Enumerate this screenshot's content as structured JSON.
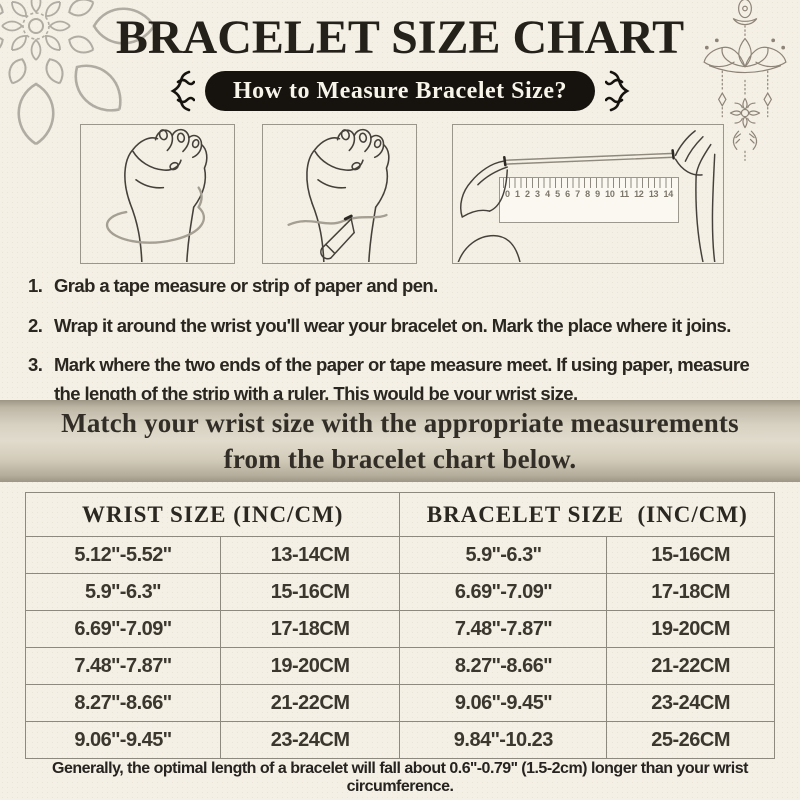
{
  "page": {
    "title": "BRACELET SIZE CHART",
    "how_to_button": "How to Measure Bracelet Size?",
    "footer_note": "Generally, the optimal length of a bracelet will fall about 0.6''-0.79'' (1.5-2cm) longer than your wrist circumference."
  },
  "instructions": {
    "items": [
      "Grab a tape measure or strip of paper and pen.",
      "Wrap it around the wrist you'll wear your bracelet on. Mark the place where it joins.",
      "Mark where the two ends of the paper or tape measure meet. If using paper, measure the length of the strip with a ruler. This would be your wrist size."
    ]
  },
  "banner": {
    "text": "Match your wrist size with the appropriate measurements from the bracelet chart below."
  },
  "ruler": {
    "numbers": [
      "0",
      "1",
      "2",
      "3",
      "4",
      "5",
      "6",
      "7",
      "8",
      "9",
      "10",
      "11",
      "12",
      "13",
      "14"
    ]
  },
  "size_table": {
    "headers": [
      "WRIST SIZE (INC/CM)",
      "BRACELET SIZE  (INC/CM)"
    ],
    "rows": [
      [
        "5.12''-5.52''",
        "13-14CM",
        "5.9''-6.3''",
        "15-16CM"
      ],
      [
        "5.9''-6.3''",
        "15-16CM",
        "6.69''-7.09''",
        "17-18CM"
      ],
      [
        "6.69''-7.09''",
        "17-18CM",
        "7.48''-7.87''",
        "19-20CM"
      ],
      [
        "7.48''-7.87''",
        "19-20CM",
        "8.27''-8.66''",
        "21-22CM"
      ],
      [
        "8.27''-8.66''",
        "21-22CM",
        "9.06''-9.45''",
        "23-24CM"
      ],
      [
        "9.06''-9.45''",
        "23-24CM",
        "9.84''-10.23",
        "25-26CM"
      ]
    ]
  },
  "colors": {
    "background": "#f4f0e5",
    "pill_background": "#16130f",
    "pill_text": "#f7f4ea",
    "banner_mid": "#e1dbcd",
    "table_border": "#8e897e",
    "ornament_gray": "#b1aca3"
  }
}
